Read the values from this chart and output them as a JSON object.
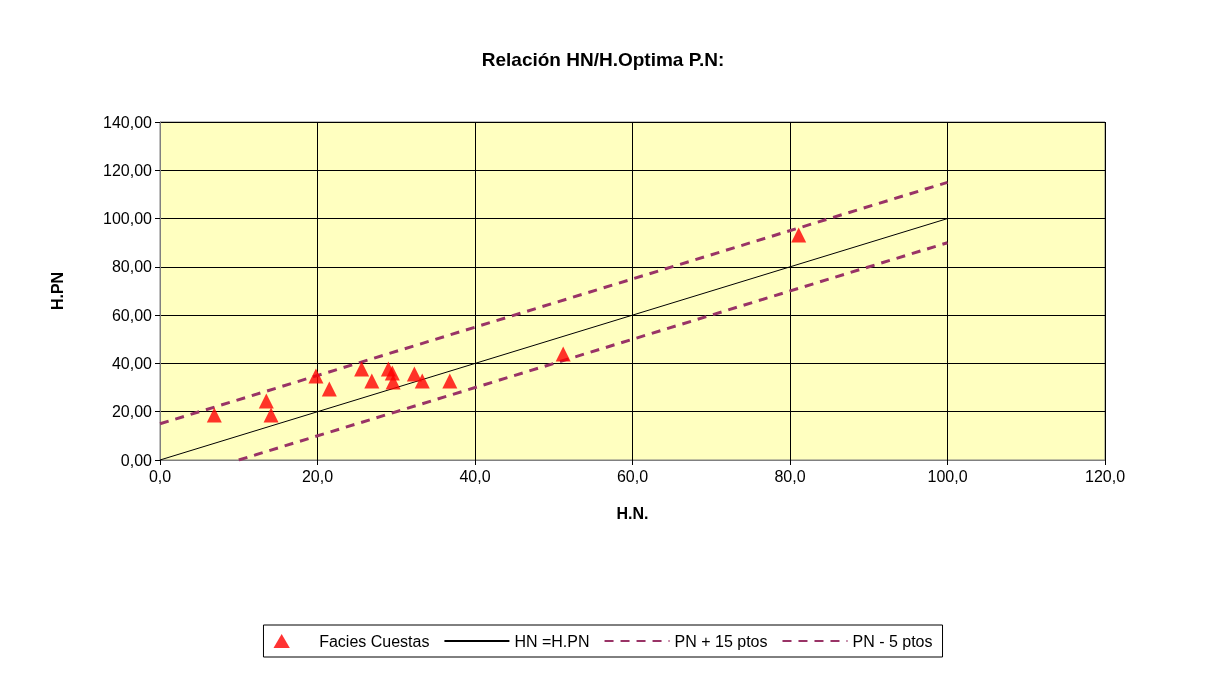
{
  "chart_data": {
    "type": "scatter",
    "title": "Relación HN/H.Optima P.N:",
    "xlabel": "H.N.",
    "ylabel": "H.PN",
    "xlim": [
      0,
      120
    ],
    "xticks": [
      {
        "value": 0,
        "label": "0,0"
      },
      {
        "value": 20,
        "label": "20,0"
      },
      {
        "value": 40,
        "label": "40,0"
      },
      {
        "value": 60,
        "label": "60,0"
      },
      {
        "value": 80,
        "label": "80,0"
      },
      {
        "value": 100,
        "label": "100,0"
      },
      {
        "value": 120,
        "label": "120,0"
      }
    ],
    "ylim": [
      0,
      140
    ],
    "yticks": [
      {
        "value": 0,
        "label": "0,00"
      },
      {
        "value": 20,
        "label": "20,00"
      },
      {
        "value": 40,
        "label": "40,00"
      },
      {
        "value": 60,
        "label": "60,00"
      },
      {
        "value": 80,
        "label": "80,00"
      },
      {
        "value": 100,
        "label": "100,00"
      },
      {
        "value": 120,
        "label": "120,00"
      },
      {
        "value": 140,
        "label": "140,00"
      }
    ],
    "grid": true,
    "legend": "bottom",
    "series": [
      {
        "name": "Facies Cuestas",
        "marker": "triangle",
        "color": "#ff0000",
        "x": [
          6.9,
          13.5,
          14.1,
          19.8,
          21.5,
          25.6,
          26.9,
          29.0,
          29.5,
          29.6,
          32.3,
          33.3,
          36.8,
          51.2,
          81.1
        ],
        "values": [
          18.6,
          24.4,
          18.6,
          34.8,
          29.4,
          37.7,
          32.7,
          37.7,
          36.0,
          32.3,
          35.6,
          32.7,
          32.7,
          43.9,
          93.2
        ]
      },
      {
        "name": "HN =H.PN",
        "type": "line",
        "marker": "none",
        "line_style": "solid",
        "color": "#000000",
        "x": [
          0,
          100
        ],
        "values": [
          0,
          100
        ]
      },
      {
        "name": "PN + 15 ptos",
        "type": "line",
        "marker": "none",
        "line_style": "dashed",
        "color": "#993366",
        "x": [
          0,
          100
        ],
        "values": [
          15,
          115
        ]
      },
      {
        "name": "PN - 5 ptos",
        "type": "line",
        "marker": "none",
        "line_style": "dashed",
        "color": "#993366",
        "x": [
          10,
          100
        ],
        "values": [
          0,
          90
        ]
      }
    ]
  }
}
